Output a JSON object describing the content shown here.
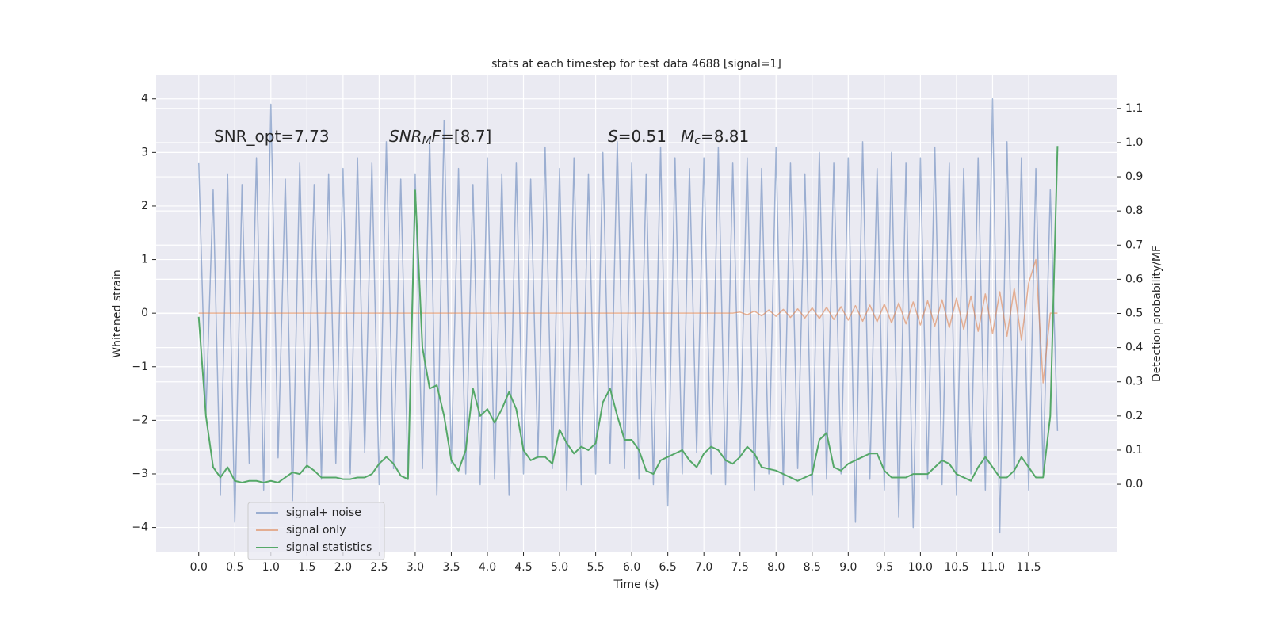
{
  "chart_data": {
    "type": "line",
    "title": "stats at each timestep for test data 4688 [signal=1]",
    "xlabel": "Time (s)",
    "ylabel": "Whitened strain",
    "y2label": "Detection probability/MF",
    "annotations": [
      [
        {
          "text": "SNR_opt=7.73"
        }
      ],
      [
        {
          "text": "SNR",
          "math": true
        },
        {
          "text": "M",
          "math": true,
          "sub": true
        },
        {
          "text": "F",
          "math": true
        },
        {
          "text": "=[8.7]"
        }
      ],
      [
        {
          "text": "S",
          "math": true
        },
        {
          "text": "=0.51"
        }
      ],
      [
        {
          "text": "M",
          "math": true
        },
        {
          "text": "c",
          "math": true,
          "sub": true
        },
        {
          "text": "=8.81"
        }
      ]
    ],
    "grid": true,
    "legend": "lower left",
    "xlim": [
      -0.59,
      12.73
    ],
    "ylim": [
      -4.45,
      4.44
    ],
    "y2lim": [
      -0.197,
      1.197
    ],
    "xticks": [
      {
        "value": 0,
        "label": "0.0"
      },
      0.5,
      {
        "value": 1,
        "label": "1.0"
      },
      1.5,
      {
        "value": 2,
        "label": "2.0"
      },
      2.5,
      {
        "value": 3,
        "label": "3.0"
      },
      3.5,
      {
        "value": 4,
        "label": "4.0"
      },
      4.5,
      {
        "value": 5,
        "label": "5.0"
      },
      5.5,
      {
        "value": 6,
        "label": "6.0"
      },
      6.5,
      {
        "value": 7,
        "label": "7.0"
      },
      7.5,
      {
        "value": 8,
        "label": "8.0"
      },
      8.5,
      {
        "value": 9,
        "label": "9.0"
      },
      9.5,
      {
        "value": 10,
        "label": "10.0"
      },
      10.5,
      {
        "value": 11,
        "label": "11.0"
      },
      11.5
    ],
    "yticks": [
      {
        "value": -4,
        "label": "−4"
      },
      {
        "value": -3,
        "label": "−3"
      },
      {
        "value": -2,
        "label": "−2"
      },
      {
        "value": -1,
        "label": "−1"
      },
      0,
      1,
      2,
      3,
      4
    ],
    "y2ticks": [
      {
        "value": 0,
        "label": "0.0"
      },
      0.1,
      0.2,
      0.3,
      0.4,
      0.5,
      0.6,
      0.7,
      0.8,
      0.9,
      {
        "value": 1,
        "label": "1.0"
      },
      1.1
    ],
    "x": [
      0,
      0.1,
      0.2,
      0.3,
      0.4,
      0.5,
      0.6,
      0.7,
      0.8,
      0.9,
      1,
      1.1,
      1.2,
      1.3,
      1.4,
      1.5,
      1.6,
      1.7,
      1.8,
      1.9,
      2,
      2.1,
      2.2,
      2.3,
      2.4,
      2.5,
      2.6,
      2.7,
      2.8,
      2.9,
      3,
      3.1,
      3.2,
      3.3,
      3.4,
      3.5,
      3.6,
      3.7,
      3.8,
      3.9,
      4,
      4.1,
      4.2,
      4.3,
      4.4,
      4.5,
      4.6,
      4.7,
      4.8,
      4.9,
      5,
      5.1,
      5.2,
      5.3,
      5.4,
      5.5,
      5.6,
      5.7,
      5.8,
      5.9,
      6,
      6.1,
      6.2,
      6.3,
      6.4,
      6.5,
      6.6,
      6.7,
      6.8,
      6.9,
      7,
      7.1,
      7.2,
      7.3,
      7.4,
      7.5,
      7.6,
      7.7,
      7.8,
      7.9,
      8,
      8.1,
      8.2,
      8.3,
      8.4,
      8.5,
      8.6,
      8.7,
      8.8,
      8.9,
      9,
      9.1,
      9.2,
      9.3,
      9.4,
      9.5,
      9.6,
      9.7,
      9.8,
      9.9,
      10,
      10.1,
      10.2,
      10.3,
      10.4,
      10.5,
      10.6,
      10.7,
      10.8,
      10.9,
      11,
      11.1,
      11.2,
      11.3,
      11.4,
      11.5,
      11.6,
      11.7,
      11.8,
      11.9
    ],
    "series": [
      {
        "name": "signal+ noise",
        "color": "#4c72b0",
        "values": [
          2.8,
          -1.9,
          2.3,
          -3.4,
          2.6,
          -3.9,
          2.4,
          -2.8,
          2.9,
          -3.3,
          3.9,
          -2.7,
          2.5,
          -3.5,
          2.8,
          -2.9,
          2.4,
          -3.1,
          2.6,
          -2.8,
          2.7,
          -3.0,
          2.9,
          -2.6,
          2.8,
          -3.2,
          3.2,
          -2.9,
          2.5,
          -3.1,
          2.6,
          -2.9,
          3.3,
          -3.4,
          3.6,
          -2.8,
          2.7,
          -3.0,
          2.4,
          -3.2,
          2.9,
          -3.1,
          2.6,
          -3.4,
          2.8,
          -3.0,
          2.5,
          -2.7,
          3.1,
          -2.9,
          2.7,
          -3.3,
          2.9,
          -3.2,
          2.6,
          -3.0,
          3.0,
          -2.8,
          3.2,
          -2.9,
          2.8,
          -3.1,
          2.6,
          -3.2,
          3.1,
          -3.6,
          2.9,
          -3.0,
          2.7,
          -2.6,
          2.9,
          -3.0,
          3.1,
          -3.2,
          2.8,
          -2.7,
          2.9,
          -3.3,
          2.7,
          -3.0,
          3.1,
          -3.2,
          2.8,
          -2.9,
          2.6,
          -3.4,
          3.0,
          -3.1,
          2.8,
          -3.0,
          2.9,
          -3.9,
          3.2,
          -3.1,
          2.7,
          -3.3,
          3.0,
          -3.8,
          2.8,
          -4.0,
          2.9,
          -3.1,
          3.1,
          -3.2,
          2.8,
          -3.4,
          2.7,
          -3.0,
          2.9,
          -3.3,
          4.0,
          -4.1,
          3.2,
          -3.1,
          2.9,
          -3.3,
          2.7,
          -3.0,
          2.3,
          -2.2
        ]
      },
      {
        "name": "signal only",
        "color": "#dd8452",
        "values": [
          0,
          0,
          0,
          0,
          0,
          0,
          0,
          0,
          0,
          0,
          0,
          0,
          0,
          0,
          0,
          0,
          0,
          0,
          0,
          0,
          0,
          0,
          0,
          0,
          0,
          0,
          0,
          0,
          0,
          0,
          0,
          0,
          0,
          0,
          0,
          0,
          0,
          0,
          0,
          0,
          0,
          0,
          0,
          0,
          0,
          0,
          0,
          0,
          0,
          0,
          0,
          0,
          0,
          0,
          0,
          0,
          0,
          0,
          0,
          0,
          0,
          0,
          0,
          0,
          0,
          0,
          0,
          0,
          0,
          0,
          0,
          0,
          0,
          0,
          0,
          0.02,
          -0.03,
          0.04,
          -0.05,
          0.06,
          -0.06,
          0.07,
          -0.08,
          0.08,
          -0.09,
          0.1,
          -0.1,
          0.11,
          -0.12,
          0.12,
          -0.13,
          0.14,
          -0.15,
          0.15,
          -0.16,
          0.17,
          -0.18,
          0.19,
          -0.2,
          0.21,
          -0.22,
          0.23,
          -0.24,
          0.25,
          -0.27,
          0.28,
          -0.3,
          0.32,
          -0.34,
          0.36,
          -0.38,
          0.4,
          -0.43,
          0.46,
          -0.5,
          0.56,
          1.0,
          -1.3,
          0,
          0
        ]
      },
      {
        "name": "signal statistics",
        "color": "#55a868",
        "axis": "y2",
        "values": [
          0.49,
          0.2,
          0.05,
          0.02,
          0.05,
          0.01,
          0.005,
          0.01,
          0.01,
          0.005,
          0.01,
          0.005,
          0.02,
          0.035,
          0.03,
          0.055,
          0.04,
          0.02,
          0.02,
          0.02,
          0.015,
          0.015,
          0.02,
          0.02,
          0.03,
          0.06,
          0.08,
          0.06,
          0.025,
          0.015,
          0.86,
          0.4,
          0.28,
          0.29,
          0.2,
          0.07,
          0.04,
          0.1,
          0.28,
          0.2,
          0.22,
          0.18,
          0.22,
          0.27,
          0.22,
          0.1,
          0.07,
          0.08,
          0.08,
          0.06,
          0.16,
          0.12,
          0.09,
          0.11,
          0.1,
          0.12,
          0.24,
          0.28,
          0.2,
          0.13,
          0.13,
          0.1,
          0.04,
          0.03,
          0.07,
          0.08,
          0.09,
          0.1,
          0.07,
          0.05,
          0.09,
          0.11,
          0.1,
          0.07,
          0.06,
          0.08,
          0.11,
          0.09,
          0.05,
          0.045,
          0.04,
          0.03,
          0.02,
          0.01,
          0.02,
          0.03,
          0.13,
          0.15,
          0.05,
          0.04,
          0.06,
          0.07,
          0.08,
          0.09,
          0.09,
          0.04,
          0.02,
          0.02,
          0.02,
          0.03,
          0.03,
          0.03,
          0.05,
          0.07,
          0.06,
          0.03,
          0.02,
          0.01,
          0.05,
          0.08,
          0.05,
          0.02,
          0.02,
          0.04,
          0.08,
          0.05,
          0.02,
          0.02,
          0.2,
          0.99
        ]
      }
    ]
  }
}
